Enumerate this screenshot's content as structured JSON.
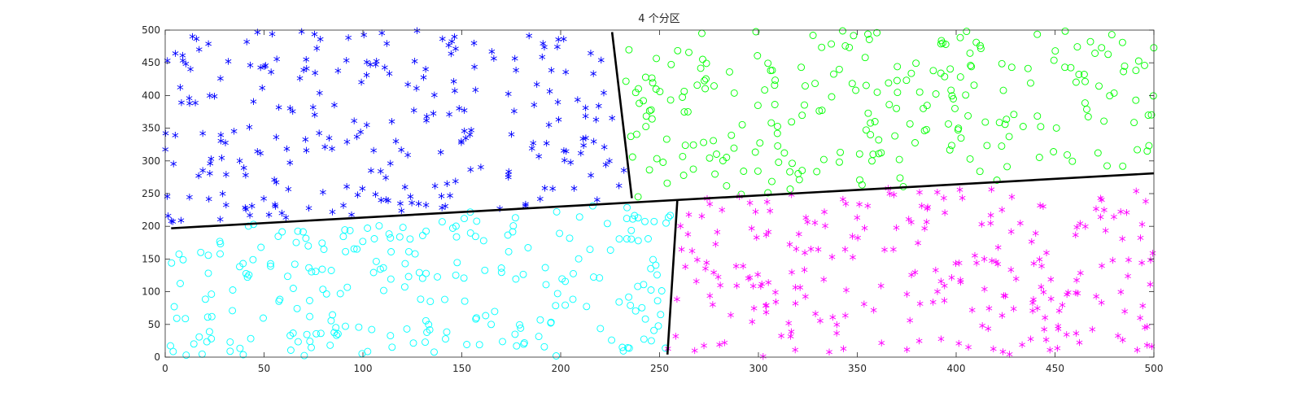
{
  "chart_data": {
    "type": "scatter",
    "title": "4 个分区",
    "xlabel": "",
    "ylabel": "",
    "xlim": [
      0,
      500
    ],
    "ylim": [
      0,
      500
    ],
    "xticks": [
      0,
      50,
      100,
      150,
      200,
      250,
      300,
      350,
      400,
      450,
      500
    ],
    "yticks": [
      0,
      50,
      100,
      150,
      200,
      250,
      300,
      350,
      400,
      450,
      500
    ],
    "grid": false,
    "legend": "none",
    "series": [
      {
        "marker": "asterisk",
        "color": "#0000ff",
        "count": 250,
        "x_range": [
          0,
          240
        ],
        "y_range": [
          205,
          500
        ]
      },
      {
        "marker": "circle",
        "color": "#00ff00",
        "count": 250,
        "x_range": [
          225,
          500
        ],
        "y_range": [
          240,
          500
        ]
      },
      {
        "marker": "circle",
        "color": "#00ffff",
        "count": 250,
        "x_range": [
          0,
          258
        ],
        "y_range": [
          0,
          250
        ]
      },
      {
        "marker": "asterisk",
        "color": "#ff00ff",
        "count": 250,
        "x_range": [
          250,
          500
        ],
        "y_range": [
          0,
          258
        ]
      }
    ],
    "boundary_lines": [
      {
        "x": [
          3,
          500
        ],
        "y": [
          197,
          281
        ],
        "color": "#000000"
      },
      {
        "x": [
          226,
          236
        ],
        "y": [
          497,
          243
        ],
        "color": "#000000"
      },
      {
        "x": [
          254,
          259
        ],
        "y": [
          4,
          240
        ],
        "color": "#000000"
      }
    ]
  }
}
